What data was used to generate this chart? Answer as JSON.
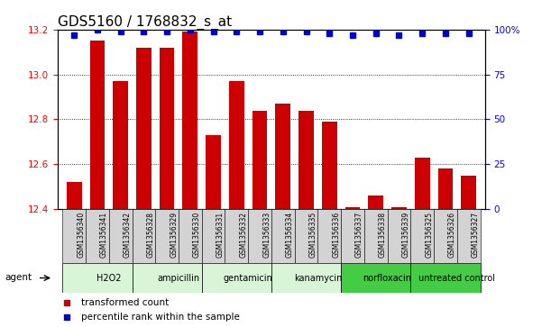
{
  "title": "GDS5160 / 1768832_s_at",
  "samples": [
    "GSM1356340",
    "GSM1356341",
    "GSM1356342",
    "GSM1356328",
    "GSM1356329",
    "GSM1356330",
    "GSM1356331",
    "GSM1356332",
    "GSM1356333",
    "GSM1356334",
    "GSM1356335",
    "GSM1356336",
    "GSM1356337",
    "GSM1356338",
    "GSM1356339",
    "GSM1356325",
    "GSM1356326",
    "GSM1356327"
  ],
  "bar_values": [
    12.52,
    13.15,
    12.97,
    13.12,
    13.12,
    13.19,
    12.73,
    12.97,
    12.84,
    12.87,
    12.84,
    12.79,
    12.41,
    12.46,
    12.41,
    12.63,
    12.58,
    12.55
  ],
  "percentile_values": [
    97,
    100,
    99,
    99,
    99,
    100,
    99,
    99,
    99,
    99,
    99,
    98,
    97,
    98,
    97,
    98,
    98,
    98
  ],
  "groups": [
    {
      "label": "H2O2",
      "start": 0,
      "end": 3,
      "color": "#d8f5d8"
    },
    {
      "label": "ampicillin",
      "start": 3,
      "end": 6,
      "color": "#d8f5d8"
    },
    {
      "label": "gentamicin",
      "start": 6,
      "end": 9,
      "color": "#d8f5d8"
    },
    {
      "label": "kanamycin",
      "start": 9,
      "end": 12,
      "color": "#d8f5d8"
    },
    {
      "label": "norfloxacin",
      "start": 12,
      "end": 15,
      "color": "#44cc44"
    },
    {
      "label": "untreated control",
      "start": 15,
      "end": 18,
      "color": "#44cc44"
    }
  ],
  "ylim_left": [
    12.4,
    13.2
  ],
  "ylim_right": [
    0,
    100
  ],
  "yticks_left": [
    12.4,
    12.6,
    12.8,
    13.0,
    13.2
  ],
  "yticks_right": [
    0,
    25,
    50,
    75,
    100
  ],
  "bar_color": "#cc0000",
  "dot_color": "#0000cc",
  "agent_label": "agent",
  "legend_bar": "transformed count",
  "legend_dot": "percentile rank within the sample",
  "title_fontsize": 11,
  "tick_fontsize": 7.5,
  "sample_fontsize": 5.5,
  "group_fontsize": 7,
  "legend_fontsize": 7.5
}
